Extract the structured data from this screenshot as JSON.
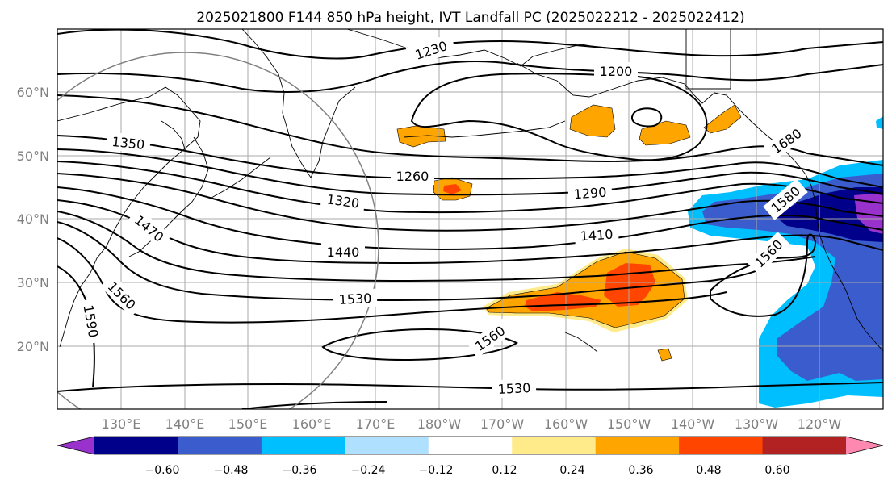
{
  "title": "2025021800 F144 850 hPa height, IVT Landfall PC (2025022212 - 2025022412)",
  "latitude_labels": [
    "60°N",
    "50°N",
    "40°N",
    "30°N",
    "20°N"
  ],
  "longitude_labels": [
    "130°E",
    "140°E",
    "150°E",
    "160°E",
    "170°E",
    "180°W",
    "170°W",
    "160°W",
    "150°W",
    "140°W",
    "130°W",
    "120°W"
  ],
  "contour_labels": [
    "1230",
    "1200",
    "1350",
    "1260",
    "1320",
    "1290",
    "1470",
    "1410",
    "1440",
    "1580",
    "1560",
    "1560",
    "1530",
    "1590",
    "1560",
    "1530",
    "1680"
  ],
  "colorbar": {
    "ticks": [
      "−0.60",
      "−0.48",
      "−0.36",
      "−0.24",
      "−0.12",
      "0.12",
      "0.24",
      "0.36",
      "0.48",
      "0.60"
    ],
    "colors": [
      "#9932cc",
      "#00008b",
      "#3a5ccc",
      "#00bfff",
      "#b0e0ff",
      "#ffffff",
      "#ffeb8a",
      "#ffa500",
      "#ff4500",
      "#b22222",
      "#ff88b0"
    ],
    "extend": "both"
  },
  "style": {
    "grid_color": "#a9a9a9",
    "circle_color": "#808080",
    "label_color": "#808080"
  }
}
